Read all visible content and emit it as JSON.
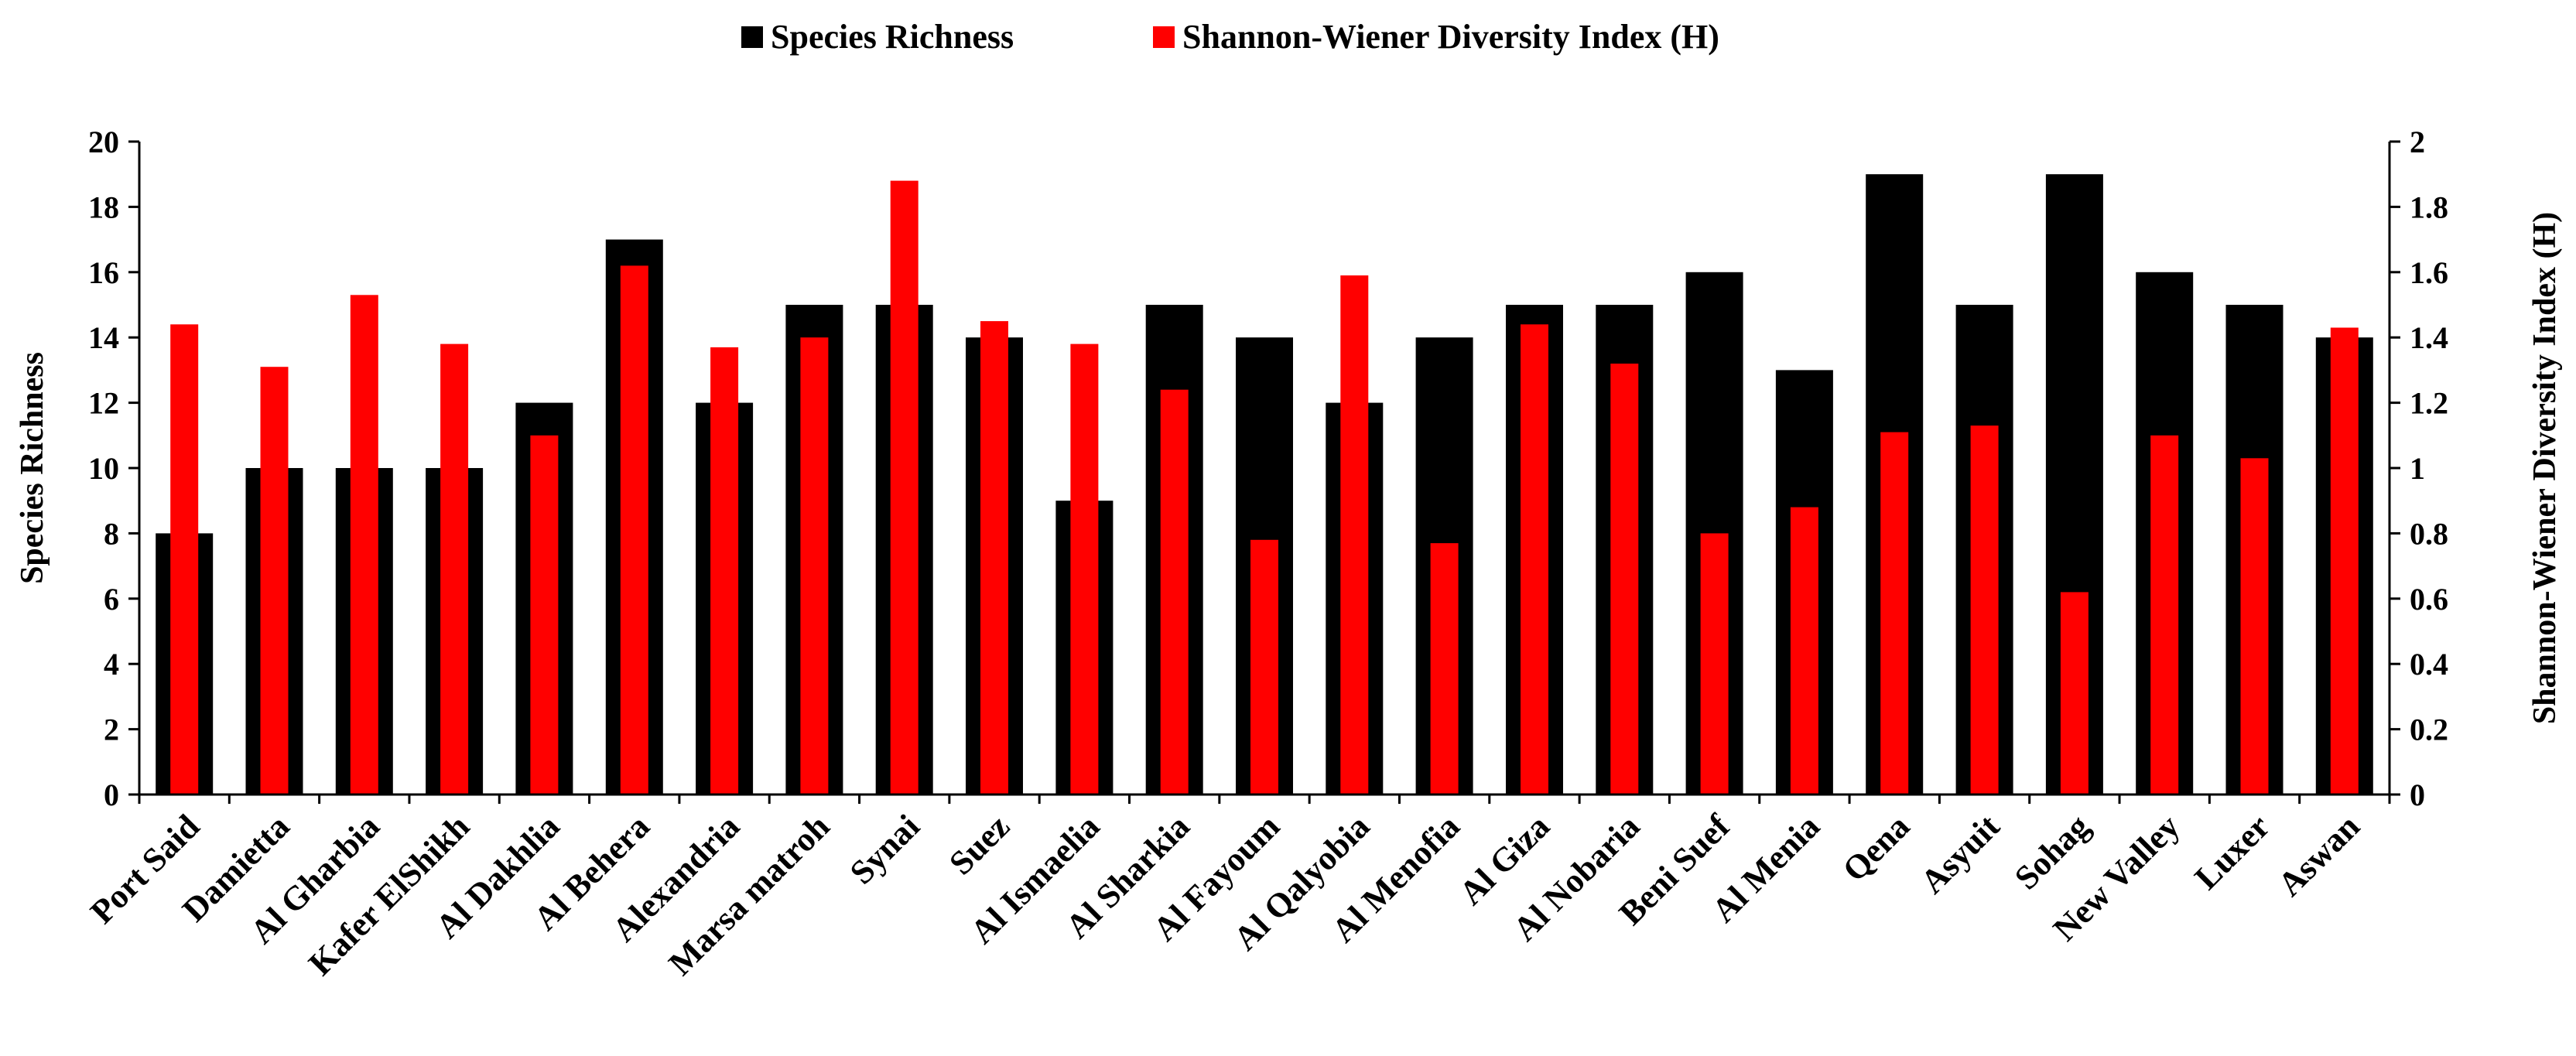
{
  "chart_data": {
    "type": "bar",
    "categories": [
      "Port Said",
      "Damietta",
      "Al Gharbia",
      "Kafer ElShikh",
      "Al Dakhlia",
      "Al Behera",
      "Alexandria",
      "Marsa matroh",
      "Synai",
      "Suez",
      "Al Ismaelia",
      "Al Sharkia",
      "Al Fayoum",
      "Al Qalyobia",
      "Al Menofia",
      "Al Giza",
      "Al Nobaria",
      "Beni Suef",
      "Al Menia",
      "Qena",
      "Asyuit",
      "Sohag",
      "New Valley",
      "Luxer",
      "Aswan"
    ],
    "series": [
      {
        "name": "Species Richness",
        "axis": "left",
        "color": "#000000",
        "values": [
          8,
          10,
          10,
          10,
          12,
          17,
          12,
          15,
          15,
          14,
          9,
          15,
          14,
          12,
          14,
          15,
          15,
          16,
          13,
          19,
          15,
          19,
          16,
          15,
          14
        ]
      },
      {
        "name": "Shannon-Wiener Diversity Index (H)",
        "axis": "right",
        "color": "#ff0000",
        "values": [
          1.44,
          1.31,
          1.53,
          1.38,
          1.1,
          1.62,
          1.37,
          1.4,
          1.88,
          1.45,
          1.38,
          1.24,
          0.78,
          1.59,
          0.77,
          1.44,
          1.32,
          0.8,
          0.88,
          1.11,
          1.13,
          0.62,
          1.1,
          1.03,
          1.43
        ]
      }
    ],
    "ylabel": "Species Richness",
    "ylim": [
      0,
      20
    ],
    "yticks": [
      0,
      2,
      4,
      6,
      8,
      10,
      12,
      14,
      16,
      18,
      20
    ],
    "y2label": "Shannon-Wiener Diversity Index (H)",
    "y2lim": [
      0,
      2
    ],
    "y2ticks": [
      "0",
      "0.2",
      "0.4",
      "0.6",
      "0.8",
      "1",
      "1.2",
      "1.4",
      "1.6",
      "1.8",
      "2"
    ],
    "legend_position": "top-center",
    "grid": false
  }
}
